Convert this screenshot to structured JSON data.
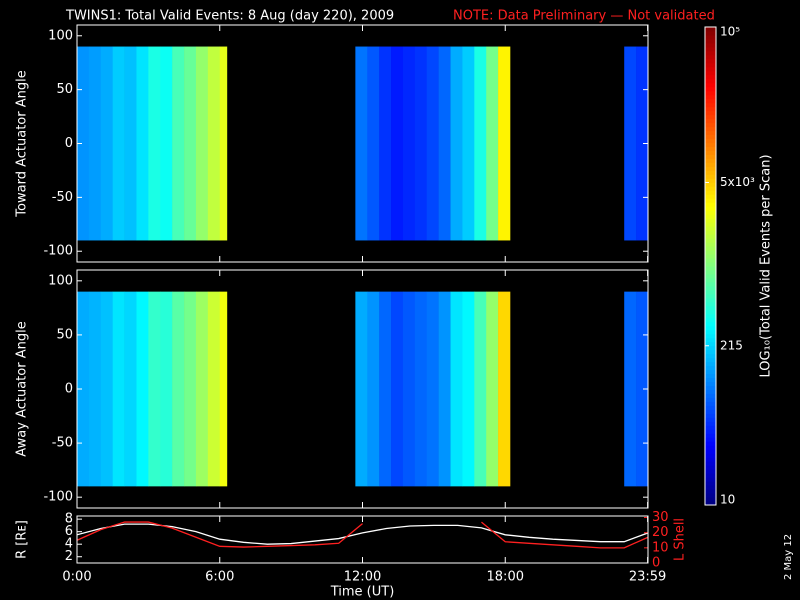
{
  "title": "TWINS1: Total Valid Events:  8 Aug (day 220), 2009",
  "note": "NOTE: Data Preliminary — Not validated",
  "footer_date": "2 May 12",
  "colorbar": {
    "label": "LOG₁₀(Total Valid Events per Scan)",
    "lim": [
      10,
      100000
    ],
    "log": true,
    "ticks": [
      10,
      215,
      {
        "value": 5000,
        "label": "5x10³"
      },
      {
        "value": 100000,
        "label": "10⁵"
      }
    ]
  },
  "chart_data": [
    {
      "type": "heatmap",
      "ylabel": "Toward Actuator Angle",
      "x_edges": [
        0,
        0.5,
        1,
        1.5,
        2,
        2.5,
        3,
        3.5,
        4,
        4.5,
        5,
        5.5,
        6,
        6.3,
        11.7,
        12.2,
        12.7,
        13.2,
        13.7,
        14.2,
        14.7,
        15.2,
        15.7,
        16.2,
        16.7,
        17.2,
        17.7,
        18.2,
        23,
        23.5,
        24
      ],
      "y_edges": [
        -90,
        90
      ],
      "values": [
        120,
        130,
        150,
        200,
        180,
        250,
        400,
        350,
        600,
        800,
        1200,
        1800,
        2500,
        null,
        90,
        70,
        50,
        40,
        45,
        50,
        60,
        80,
        150,
        200,
        400,
        900,
        3500,
        null,
        60,
        50
      ],
      "xlim": [
        0,
        24
      ],
      "xticks": [
        0,
        6,
        12,
        18,
        23.983
      ],
      "ylim": [
        -110,
        110
      ],
      "yticks": [
        100,
        50,
        0,
        -50,
        -100
      ]
    },
    {
      "type": "heatmap",
      "ylabel": "Away Actuator Angle",
      "x_edges": [
        0,
        0.5,
        1,
        1.5,
        2,
        2.5,
        3,
        3.5,
        4,
        4.5,
        5,
        5.5,
        6,
        6.3,
        11.7,
        12.2,
        12.7,
        13.2,
        13.7,
        14.2,
        14.7,
        15.2,
        15.7,
        16.2,
        16.7,
        17.2,
        17.7,
        18.2,
        23,
        23.5,
        24
      ],
      "y_edges": [
        -90,
        90
      ],
      "values": [
        150,
        160,
        180,
        250,
        220,
        300,
        500,
        450,
        700,
        900,
        1300,
        2000,
        2800,
        null,
        150,
        120,
        80,
        60,
        70,
        80,
        90,
        120,
        250,
        300,
        600,
        1200,
        4500,
        null,
        80,
        70
      ],
      "xlim": [
        0,
        24
      ],
      "xticks": [
        0,
        6,
        12,
        18,
        23.983
      ],
      "ylim": [
        -110,
        110
      ],
      "yticks": [
        100,
        50,
        0,
        -50,
        -100
      ]
    },
    {
      "type": "line",
      "ylabel": "R [Rᴇ]",
      "y2label": "L Shell",
      "xlabel": "Time (UT)",
      "x": [
        0,
        1,
        2,
        3,
        4,
        5,
        6,
        7,
        8,
        9,
        10,
        11,
        12,
        13,
        14,
        15,
        16,
        17,
        18,
        19,
        20,
        21,
        22,
        23,
        24
      ],
      "series": [
        {
          "color": "#ffffff",
          "values": [
            5.5,
            6.5,
            7.2,
            7.2,
            6.8,
            6,
            4.8,
            4.3,
            4,
            4.1,
            4.5,
            4.9,
            5.8,
            6.5,
            6.9,
            7,
            7,
            6.6,
            5.5,
            5.1,
            4.8,
            4.6,
            4.4,
            4.4,
            5.8
          ]
        },
        {
          "color": "#ff2020",
          "axis": "y2",
          "values": [
            15,
            22,
            27,
            27,
            23,
            17,
            11,
            10.5,
            11,
            11.5,
            12,
            13,
            26,
            null,
            null,
            null,
            null,
            27,
            14,
            13,
            12,
            11,
            10,
            10,
            17
          ]
        }
      ],
      "xlim": [
        0,
        24
      ],
      "xticks": [
        {
          "value": 0,
          "label": "0:00"
        },
        {
          "value": 6,
          "label": "6:00"
        },
        {
          "value": 12,
          "label": "12:00"
        },
        {
          "value": 18,
          "label": "18:00"
        },
        {
          "value": 23.983,
          "label": "23:59"
        }
      ],
      "ylim": [
        1,
        8.5
      ],
      "yticks": [
        2,
        4,
        6,
        8
      ],
      "y2lim": [
        0,
        31
      ],
      "y2ticks": [
        0,
        10,
        20,
        30
      ]
    }
  ]
}
